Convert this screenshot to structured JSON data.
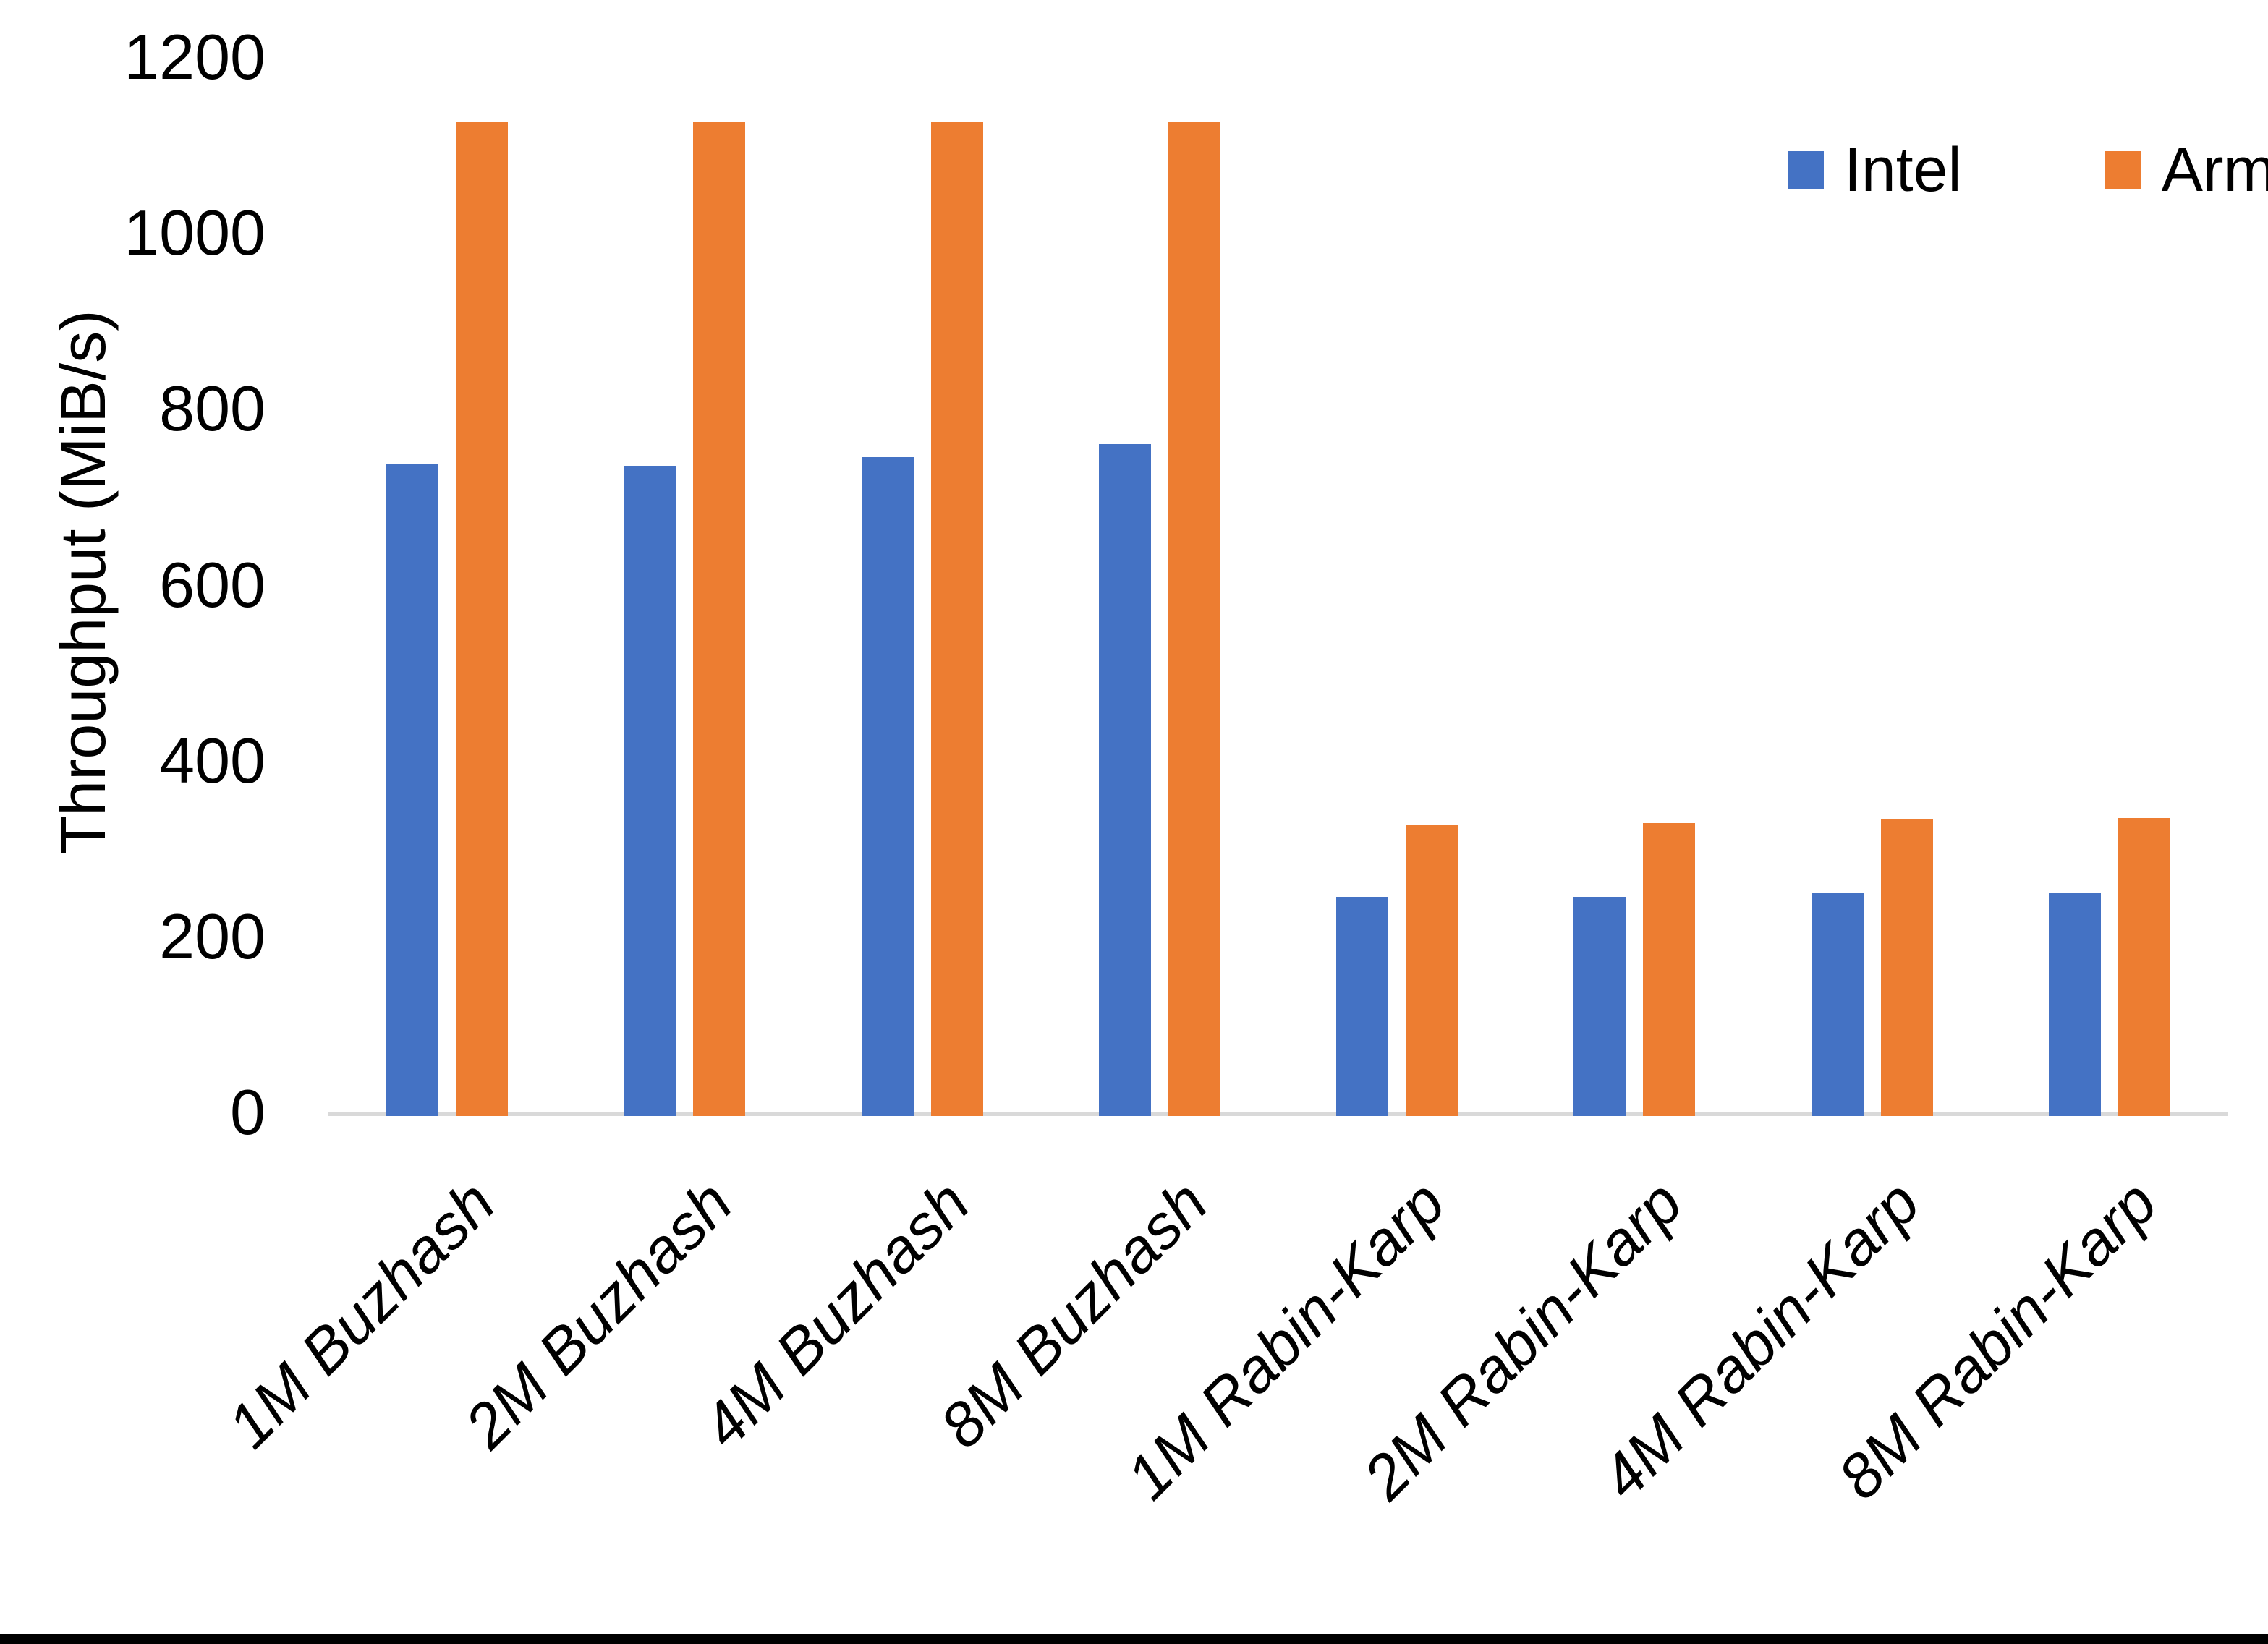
{
  "chart_data": {
    "type": "bar",
    "title": "",
    "categories": [
      "1M Buzhash",
      "2M Buzhash",
      "4M Buzhash",
      "8M Buzhash",
      "1M Rabin-Karp",
      "2M Rabin-Karp",
      "4M Rabin-Karp",
      "8M Rabin-Karp"
    ],
    "series": [
      {
        "name": "Intel",
        "color": "#4472C4",
        "values": [
          737,
          735,
          745,
          760,
          245,
          245,
          249,
          250
        ]
      },
      {
        "name": "Arm",
        "color": "#ED7D31",
        "values": [
          1126,
          1126,
          1126,
          1126,
          327,
          329,
          333,
          335
        ]
      }
    ],
    "xlabel": "",
    "ylabel": "Throughput (MiB/s)",
    "ylim": [
      0,
      1200
    ],
    "yticks": [
      0,
      200,
      400,
      600,
      800,
      1000,
      1200
    ],
    "grid": false,
    "legend_position": "top-right"
  },
  "colors": {
    "intel": "#4472C4",
    "arm": "#ED7D31",
    "axis_line": "#D9D9D9",
    "text": "#000000",
    "background": "#FFFFFF",
    "bottom_border": "#000000"
  }
}
